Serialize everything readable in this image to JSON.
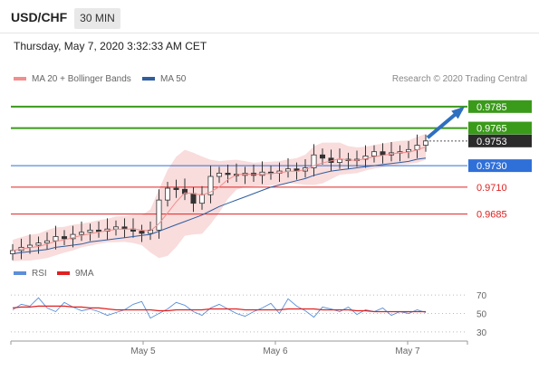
{
  "header": {
    "symbol": "USD/CHF",
    "timeframe": "30 MIN"
  },
  "timestamp": "Thursday, May 7, 2020 3:32:33 AM CET",
  "legend": {
    "ma20": "MA 20 + Bollinger Bands",
    "ma50": "MA 50",
    "copyright": "Research © 2020 Trading Central",
    "colors": {
      "ma20": "#f28e8e",
      "ma50": "#2f5d9e"
    }
  },
  "rsi_legend": {
    "rsi": "RSI",
    "ma": "9MA",
    "colors": {
      "rsi": "#5b8fd8",
      "ma": "#e02020"
    }
  },
  "chart_data": [
    {
      "type": "line",
      "title": "",
      "ylim": [
        0.964,
        0.98
      ],
      "x_ticks": [
        "May 5",
        "May 6",
        "May 7"
      ],
      "last_price": "0.9753",
      "levels": [
        {
          "value": "0.9785",
          "kind": "resistance",
          "color": "#3a9a1a"
        },
        {
          "value": "0.9765",
          "kind": "resistance",
          "color": "#3a9a1a"
        },
        {
          "value": "0.9730",
          "kind": "pivot",
          "color": "#2f6fd8"
        },
        {
          "value": "0.9710",
          "kind": "support",
          "color": "#e02020"
        },
        {
          "value": "0.9685",
          "kind": "support",
          "color": "#e02020"
        }
      ],
      "series": [
        {
          "name": "",
          "values": [
            0.9651,
            0.9654,
            0.9656,
            0.9658,
            0.966,
            0.9664,
            0.9662,
            0.9666,
            0.9668,
            0.967,
            0.9669,
            0.9671,
            0.9673,
            0.9671,
            0.9669,
            0.9667,
            0.967,
            0.9698,
            0.9709,
            0.9708,
            0.9704,
            0.9695,
            0.9703,
            0.972,
            0.9723,
            0.9722,
            0.9721,
            0.9723,
            0.9721,
            0.9724,
            0.9723,
            0.9725,
            0.9727,
            0.9725,
            0.9728,
            0.974,
            0.9737,
            0.9733,
            0.9736,
            0.9735,
            0.9736,
            0.9739,
            0.9743,
            0.974,
            0.9742,
            0.9743,
            0.9745,
            0.9749,
            0.9753
          ]
        },
        {
          "name": "",
          "values": [
            0.9648,
            0.9649,
            0.965,
            0.9651,
            0.9652,
            0.9654,
            0.9655,
            0.9656,
            0.9657,
            0.9659,
            0.966,
            0.9661,
            0.9662,
            0.9663,
            0.9664,
            0.9665,
            0.9666,
            0.9669,
            0.9672,
            0.9675,
            0.9678,
            0.9681,
            0.9684,
            0.9688,
            0.9692,
            0.9695,
            0.9698,
            0.9701,
            0.9704,
            0.9707,
            0.971,
            0.9712,
            0.9714,
            0.9716,
            0.9718,
            0.9721,
            0.9723,
            0.9725,
            0.9726,
            0.9727,
            0.9728,
            0.9729,
            0.973,
            0.9731,
            0.9732,
            0.9733,
            0.9734,
            0.9736,
            0.9737
          ]
        }
      ],
      "band_width": [
        0.001,
        0.0011,
        0.0012,
        0.0012,
        0.0013,
        0.0013,
        0.0012,
        0.0012,
        0.0011,
        0.0011,
        0.0011,
        0.0011,
        0.0012,
        0.0012,
        0.0013,
        0.0014,
        0.002,
        0.0032,
        0.004,
        0.0042,
        0.004,
        0.0038,
        0.0036,
        0.003,
        0.0024,
        0.0018,
        0.0014,
        0.0012,
        0.0011,
        0.0011,
        0.0011,
        0.0011,
        0.0011,
        0.0012,
        0.0014,
        0.0018,
        0.0019,
        0.0017,
        0.0015,
        0.0013,
        0.0012,
        0.0011,
        0.0011,
        0.0011,
        0.0011,
        0.0011,
        0.0011,
        0.0012,
        0.0012
      ]
    },
    {
      "type": "line",
      "title": "",
      "ylim": [
        25,
        80
      ],
      "y_ticks": [
        "70",
        "50",
        "30"
      ],
      "series": [
        {
          "name": "RSI",
          "values": [
            54,
            60,
            58,
            67,
            56,
            52,
            62,
            57,
            53,
            55,
            52,
            48,
            51,
            54,
            60,
            63,
            45,
            50,
            55,
            62,
            59,
            52,
            48,
            56,
            60,
            55,
            50,
            47,
            52,
            56,
            61,
            50,
            66,
            58,
            53,
            46,
            57,
            55,
            52,
            57,
            49,
            54,
            52,
            56,
            48,
            52,
            50,
            54,
            51
          ]
        },
        {
          "name": "9MA",
          "values": [
            56,
            57,
            57,
            58,
            58,
            58,
            58,
            57,
            57,
            56,
            56,
            55,
            54,
            54,
            54,
            54,
            54,
            53,
            53,
            54,
            54,
            54,
            54,
            55,
            55,
            55,
            55,
            54,
            54,
            54,
            54,
            54,
            55,
            55,
            55,
            55,
            54,
            54,
            54,
            54,
            53,
            53,
            52,
            52,
            52,
            52,
            52,
            52,
            52
          ]
        }
      ]
    }
  ]
}
